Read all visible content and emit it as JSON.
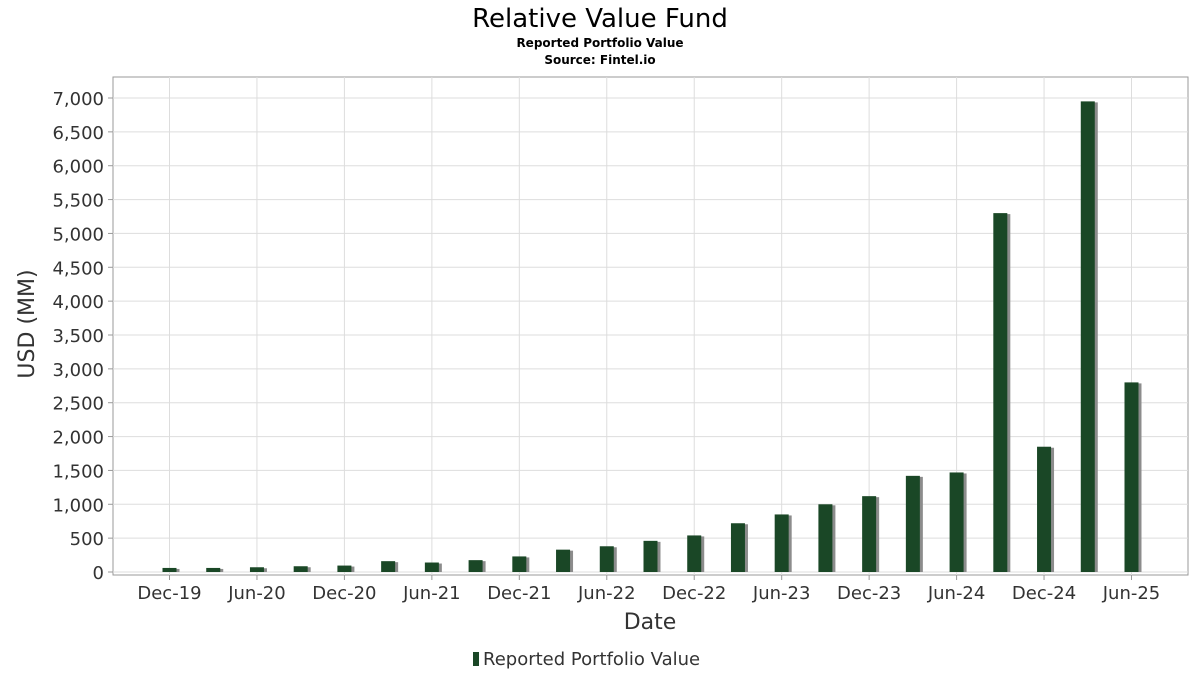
{
  "chart_data": {
    "type": "bar",
    "title": "Relative Value Fund",
    "subtitle": "Reported Portfolio Value",
    "source": "Source: Fintel.io",
    "xlabel": "Date",
    "ylabel": "USD (MM)",
    "ylim": [
      0,
      7000
    ],
    "y_ticks": [
      0,
      500,
      1000,
      1500,
      2000,
      2500,
      3000,
      3500,
      4000,
      4500,
      5000,
      5500,
      6000,
      6500,
      7000
    ],
    "y_tick_labels": [
      "0",
      "500",
      "1,000",
      "1,500",
      "2,000",
      "2,500",
      "3,000",
      "3,500",
      "4,000",
      "4,500",
      "5,000",
      "5,500",
      "6,000",
      "6,500",
      "7,000"
    ],
    "x_tick_labels": [
      "Dec-19",
      "Jun-20",
      "Dec-20",
      "Jun-21",
      "Dec-21",
      "Jun-22",
      "Dec-22",
      "Jun-23",
      "Dec-23",
      "Jun-24",
      "Dec-24",
      "Jun-25"
    ],
    "categories": [
      "Dec-19",
      "Mar-20",
      "Jun-20",
      "Sep-20",
      "Dec-20",
      "Mar-21",
      "Jun-21",
      "Sep-21",
      "Dec-21",
      "Mar-22",
      "Jun-22",
      "Sep-22",
      "Dec-22",
      "Mar-23",
      "Jun-23",
      "Sep-23",
      "Dec-23",
      "Mar-24",
      "Jun-24",
      "Sep-24",
      "Dec-24",
      "Mar-25",
      "Jun-25"
    ],
    "series": [
      {
        "name": "Reported Portfolio Value",
        "values": [
          60,
          60,
          70,
          85,
          95,
          160,
          140,
          175,
          230,
          330,
          380,
          460,
          540,
          720,
          850,
          1000,
          1120,
          1420,
          1470,
          5300,
          1850,
          6950,
          2800
        ]
      }
    ],
    "grid": true,
    "legend_position": "bottom-center",
    "colors": {
      "bar": "#1a4726",
      "bar_shadow": "#8c8c8c",
      "grid": "#dddddd",
      "axis": "#999999",
      "text": "#333333"
    }
  }
}
